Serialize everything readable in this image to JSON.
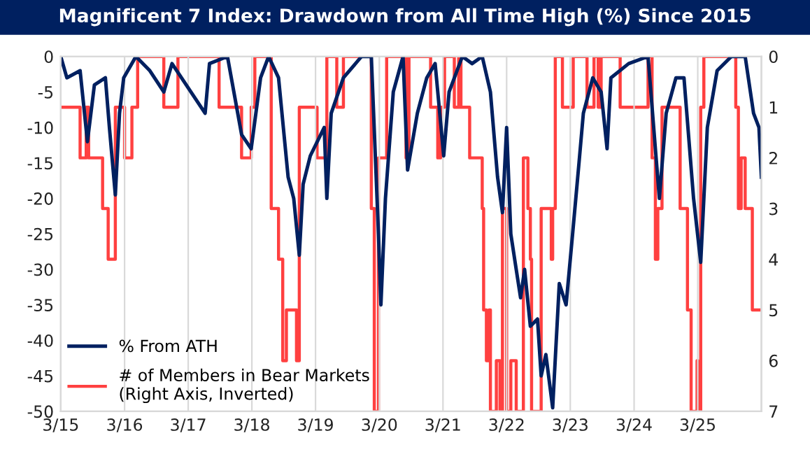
{
  "chart_data": {
    "type": "line",
    "title": "Magnificent 7 Index: Drawdown from All Time High (%) Since 2015",
    "xlim": [
      "2015-03-01",
      "2026-03-01"
    ],
    "xticks": [
      {
        "value": "2015-03-01",
        "label": "3/15"
      },
      {
        "value": "2016-03-01",
        "label": "3/16"
      },
      {
        "value": "2017-03-01",
        "label": "3/17"
      },
      {
        "value": "2018-03-01",
        "label": "3/18"
      },
      {
        "value": "2019-03-01",
        "label": "3/19"
      },
      {
        "value": "2020-03-01",
        "label": "3/20"
      },
      {
        "value": "2021-03-01",
        "label": "3/21"
      },
      {
        "value": "2022-03-01",
        "label": "3/22"
      },
      {
        "value": "2023-03-01",
        "label": "3/23"
      },
      {
        "value": "2024-03-01",
        "label": "3/24"
      },
      {
        "value": "2025-03-01",
        "label": "3/25"
      }
    ],
    "ylim": [
      -50,
      0
    ],
    "yticks": [
      -50,
      -45,
      -40,
      -35,
      -30,
      -25,
      -20,
      -15,
      -10,
      -5,
      0
    ],
    "y2lim": [
      7,
      0
    ],
    "y2ticks": [
      0,
      1,
      2,
      3,
      4,
      5,
      6,
      7
    ],
    "grid": "x",
    "legend": "bottom left",
    "series": [
      {
        "name": "% From ATH",
        "color": "#002060",
        "x": [
          "2015-03-01",
          "2015-04-05",
          "2015-06-20",
          "2015-08-01",
          "2015-09-10",
          "2015-11-12",
          "2015-12-05",
          "2016-01-08",
          "2016-02-01",
          "2016-02-25",
          "2016-05-05",
          "2016-07-24",
          "2016-10-12",
          "2016-11-28",
          "2017-06-06",
          "2017-07-01",
          "2017-10-12",
          "2018-01-01",
          "2018-02-25",
          "2018-04-20",
          "2018-06-05",
          "2018-08-01",
          "2018-09-25",
          "2018-10-27",
          "2018-11-28",
          "2018-12-20",
          "2019-01-30",
          "2019-04-20",
          "2019-05-05",
          "2019-05-30",
          "2019-08-08",
          "2019-11-20",
          "2020-01-15",
          "2020-02-25",
          "2020-03-10",
          "2020-04-05",
          "2020-05-20",
          "2020-07-15",
          "2020-08-10",
          "2020-10-05",
          "2020-11-28",
          "2021-01-15",
          "2021-03-05",
          "2021-04-05",
          "2021-06-20",
          "2021-08-15",
          "2021-10-12",
          "2021-11-28",
          "2022-01-08",
          "2022-02-05",
          "2022-03-01",
          "2022-03-25",
          "2022-04-25",
          "2022-05-20",
          "2022-06-12",
          "2022-07-15",
          "2022-08-25",
          "2022-09-15",
          "2022-10-12",
          "2022-11-20",
          "2022-12-28",
          "2023-02-05",
          "2023-03-18",
          "2023-04-20",
          "2023-05-15",
          "2023-07-08",
          "2023-08-25",
          "2023-09-28",
          "2023-10-20",
          "2024-01-30",
          "2024-05-20",
          "2024-07-01",
          "2024-07-24",
          "2024-09-01",
          "2024-10-27",
          "2024-12-12",
          "2025-02-05",
          "2025-03-18",
          "2025-04-25",
          "2025-06-20",
          "2025-09-10",
          "2025-11-28",
          "2026-01-15",
          "2026-02-15",
          "2026-03-01"
        ],
        "values": [
          0,
          -3,
          -2,
          -12,
          -4,
          -3,
          -10,
          -19.5,
          -8,
          -3,
          0,
          -2,
          -5,
          -1,
          -8,
          -1,
          0,
          -11,
          -13,
          -3,
          0,
          -3,
          -17,
          -20,
          -28,
          -18,
          -14,
          -10,
          -20,
          -8,
          -3,
          0,
          0,
          -25,
          -35,
          -20,
          -5,
          0,
          -16,
          -8,
          -3,
          -1,
          -14,
          -5,
          0,
          -1,
          0,
          -5,
          -17,
          -22,
          -10,
          -25,
          -30,
          -34,
          -30,
          -38,
          -37,
          -45,
          -42,
          -49.5,
          -32,
          -35,
          -24,
          -15,
          -8,
          -3,
          -5,
          -13,
          -3,
          -1,
          0,
          -13,
          -20,
          -8,
          -3,
          -3,
          -20,
          -29,
          -10,
          -2,
          0,
          0,
          -8,
          -10,
          -17
        ]
      },
      {
        "name": "# of Members in Bear Markets\n(Right Axis, Inverted)",
        "color": "#ff4040",
        "type": "step",
        "axis": "y2",
        "x": [
          "2015-03-01",
          "2015-06-20",
          "2015-07-25",
          "2015-08-08",
          "2015-10-27",
          "2015-11-28",
          "2016-01-08",
          "2016-03-01",
          "2016-04-12",
          "2016-05-15",
          "2016-10-12",
          "2017-01-01",
          "2017-08-25",
          "2018-01-01",
          "2018-02-25",
          "2018-03-18",
          "2018-06-20",
          "2018-08-01",
          "2018-08-25",
          "2018-09-15",
          "2018-11-12",
          "2018-11-28",
          "2019-03-10",
          "2019-05-05",
          "2019-07-01",
          "2019-08-08",
          "2020-01-15",
          "2020-02-01",
          "2020-02-25",
          "2020-04-12",
          "2020-08-01",
          "2020-08-18",
          "2020-12-20",
          "2021-01-30",
          "2021-02-15",
          "2021-03-10",
          "2021-05-05",
          "2021-05-30",
          "2021-06-12",
          "2021-08-01",
          "2021-10-12",
          "2021-10-20",
          "2021-11-05",
          "2021-11-20",
          "2021-11-28",
          "2022-01-01",
          "2022-01-22",
          "2022-02-05",
          "2022-03-01",
          "2022-03-25",
          "2022-04-25",
          "2022-06-05",
          "2022-07-01",
          "2022-07-15",
          "2022-07-22",
          "2022-09-15",
          "2022-11-12",
          "2022-11-20",
          "2022-12-05",
          "2023-01-15",
          "2023-03-18",
          "2023-06-05",
          "2023-07-15",
          "2023-08-08",
          "2023-08-25",
          "2023-12-12",
          "2024-05-20",
          "2024-06-12",
          "2024-07-01",
          "2024-07-15",
          "2024-08-08",
          "2024-11-20",
          "2025-01-01",
          "2025-01-22",
          "2025-02-25",
          "2025-03-01",
          "2025-03-18",
          "2025-04-05",
          "2025-10-05",
          "2025-10-20",
          "2025-11-05",
          "2025-11-28",
          "2026-01-08",
          "2026-03-01"
        ],
        "values": [
          1,
          2,
          1,
          2,
          3,
          4,
          1,
          2,
          1,
          0,
          1,
          0,
          1,
          2,
          1,
          0,
          3,
          4,
          6,
          5,
          6,
          1,
          2,
          0,
          1,
          0,
          3,
          7,
          2,
          0,
          2,
          0,
          1,
          2,
          1,
          0,
          1,
          0,
          1,
          2,
          3,
          5,
          6,
          5,
          7,
          6,
          7,
          3,
          7,
          6,
          7,
          2,
          3,
          4,
          7,
          3,
          4,
          3,
          0,
          1,
          0,
          1,
          0,
          1,
          0,
          1,
          0,
          2,
          4,
          3,
          1,
          3,
          5,
          7,
          6,
          7,
          1,
          0,
          1,
          3,
          2,
          3,
          5,
          5
        ]
      }
    ]
  }
}
